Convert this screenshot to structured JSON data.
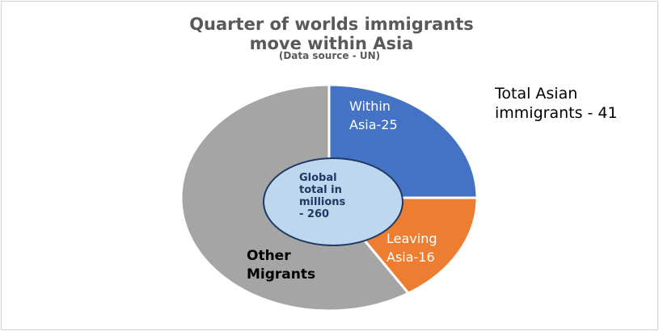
{
  "chart_data": {
    "type": "pie",
    "title": "Quarter of worlds immigrants move within Asia",
    "subtitle": "(Data source - UN)",
    "slices": [
      {
        "label": "Within Asia-25",
        "value": 25,
        "color": "#4472c4"
      },
      {
        "label": "Leaving Asia-16",
        "value": 16,
        "color": "#ed7d31"
      },
      {
        "label": "Other Migrants",
        "value": 59,
        "color": "#a5a5a5"
      }
    ],
    "center_label": "Global total in millions - 260",
    "center_color": "#bdd7ee",
    "annotation": "Total Asian immigrants - 41"
  }
}
